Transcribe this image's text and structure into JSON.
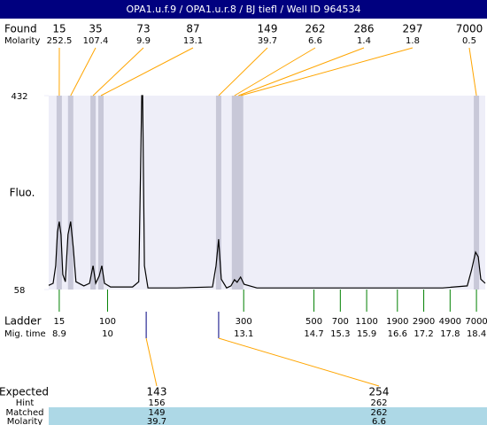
{
  "title": "OPA1.u.f.9 / OPA1.u.r.8 / BJ tiefl / Well ID 964534",
  "chart_data": {
    "type": "line",
    "ylabel": "Fluo.",
    "color": "#000000",
    "x": [
      8.66,
      8.76,
      8.82,
      8.86,
      8.9,
      8.94,
      8.98,
      9.04,
      9.1,
      9.16,
      9.22,
      9.28,
      9.46,
      9.59,
      9.67,
      9.73,
      9.81,
      9.87,
      9.93,
      10.07,
      10.57,
      10.71,
      10.78,
      10.8,
      10.84,
      10.92,
      11.58,
      12.39,
      12.47,
      12.53,
      12.59,
      12.71,
      12.81,
      12.89,
      12.95,
      13.03,
      13.11,
      13.4,
      15.61,
      17.63,
      18.19,
      18.29,
      18.38,
      18.44,
      18.5,
      18.6
    ],
    "values": [
      66,
      70,
      104,
      169,
      189,
      164,
      87,
      73,
      164,
      189,
      138,
      73,
      65,
      70,
      104,
      70,
      84,
      104,
      70,
      63,
      63,
      73,
      432,
      432,
      104,
      61,
      61,
      63,
      104,
      155,
      78,
      61,
      65,
      77,
      72,
      82,
      68,
      61,
      61,
      61,
      65,
      96,
      130,
      121,
      78,
      70
    ],
    "xlim": [
      8.66,
      18.6
    ],
    "ylim": [
      58,
      432
    ],
    "yticks": [
      58,
      432
    ]
  },
  "found": {
    "label": "Found",
    "molarity_label": "Molarity",
    "sizes": [
      15,
      35,
      73,
      87,
      149,
      262,
      286,
      297,
      7000
    ],
    "molarities": [
      252.5,
      107.4,
      9.9,
      13.1,
      39.7,
      6.6,
      1.4,
      1.8,
      0.5
    ],
    "times": [
      8.9,
      9.16,
      9.67,
      9.85,
      12.53,
      12.89,
      12.98,
      13.03,
      18.4
    ]
  },
  "ladder": {
    "label": "Ladder",
    "time_label": "Mig. time",
    "sizes": [
      15,
      100,
      300,
      500,
      700,
      1100,
      1900,
      2900,
      4900,
      7000
    ],
    "times": [
      8.9,
      10,
      13.1,
      14.7,
      15.3,
      15.9,
      16.6,
      17.2,
      17.8,
      18.4
    ]
  },
  "expected": {
    "row_labels": [
      "Expected",
      "Hint",
      "Matched",
      "Molarity"
    ],
    "columns": [
      {
        "expected": 143,
        "hint": 156,
        "matched": 149,
        "molarity": 39.7,
        "time": 10.88
      },
      {
        "expected": 254,
        "hint": 262,
        "matched": 262,
        "molarity": 6.6,
        "time": 12.53
      }
    ]
  }
}
